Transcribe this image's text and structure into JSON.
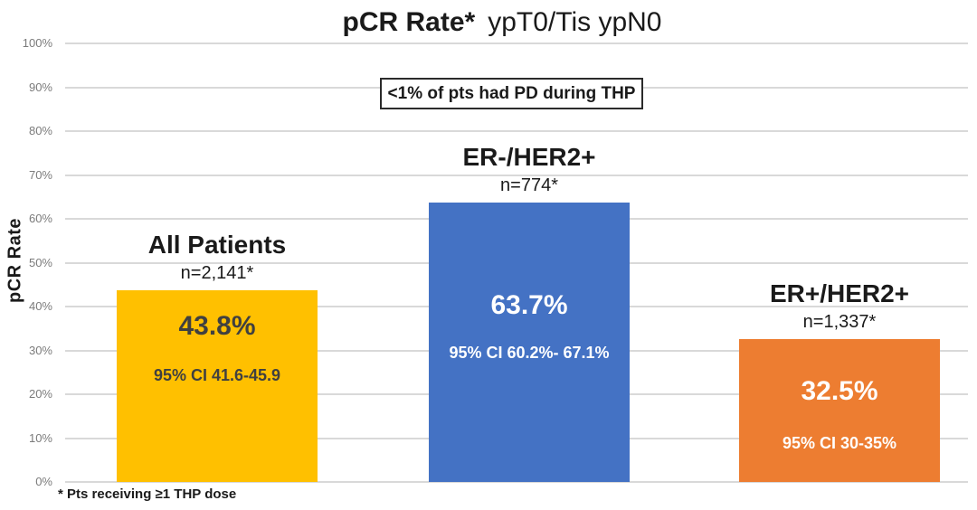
{
  "chart_data": {
    "type": "bar",
    "title_bold": "pCR Rate*",
    "title_rest": "ypT0/Tis ypN0",
    "ylabel": "pCR Rate",
    "annotation": "<1% of pts had PD during THP",
    "footnote": "* Pts receiving ≥1 THP dose",
    "ylim": [
      0,
      100
    ],
    "grid": true,
    "y_ticks": [
      "100%",
      "90%",
      "80%",
      "70%",
      "60%",
      "50%",
      "40%",
      "30%",
      "20%",
      "10%",
      "0%"
    ],
    "categories": [
      "All Patients",
      "ER-/HER2+",
      "ER+/HER2+"
    ],
    "values": [
      43.8,
      63.7,
      32.5
    ],
    "bars": [
      {
        "label": "All Patients",
        "n_label": "n=2,141*",
        "value": 43.8,
        "value_label": "43.8%",
        "ci_label": "95% CI 41.6-45.9",
        "color": "#FFC000",
        "text_color": "#404040"
      },
      {
        "label": "ER-/HER2+",
        "n_label": "n=774*",
        "value": 63.7,
        "value_label": "63.7%",
        "ci_label": "95% CI 60.2%- 67.1%",
        "color": "#4472C4",
        "text_color": "#FFFFFF"
      },
      {
        "label": "ER+/HER2+",
        "n_label": "n=1,337*",
        "value": 32.5,
        "value_label": "32.5%",
        "ci_label": "95% CI 30-35%",
        "color": "#ED7D31",
        "text_color": "#FFFFFF"
      }
    ],
    "colors": {
      "gridline": "#d9d9d9",
      "tick_text": "#7b7b7b",
      "bar_gold": "#FFC000",
      "bar_blue": "#4472C4",
      "bar_orange": "#ED7D31"
    }
  }
}
